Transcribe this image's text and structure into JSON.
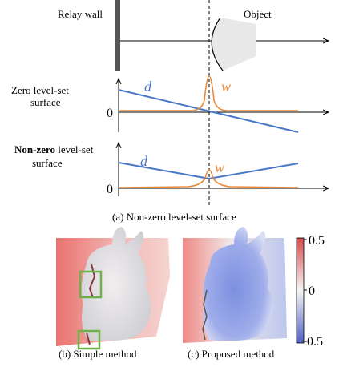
{
  "panel_a": {
    "relay_wall_label": "Relay wall",
    "object_label": "Object",
    "zero_surface_label": [
      "Zero level-set",
      "surface"
    ],
    "nonzero_surface_label_bold": "Non-zero",
    "nonzero_surface_label_rest": " level-set",
    "nonzero_surface_label_line2": "surface",
    "zero_tick": "0",
    "d_label": "d",
    "w_label": "w",
    "caption": "(a) Non-zero level-set surface"
  },
  "panel_b": {
    "caption": "(b) Simple method"
  },
  "panel_c": {
    "caption": "(c) Proposed method"
  },
  "colorbar": {
    "ticks": [
      "0.5",
      "0",
      "−0.5"
    ],
    "max": 0.5,
    "min": -0.5,
    "colors": {
      "positive": "#d94b4b",
      "zero": "#f5f5f5",
      "negative": "#4e5fc7"
    }
  },
  "colors": {
    "d_line": "#4a78c8",
    "w_line": "#e8893a",
    "highlight_box": "#6fb04a"
  }
}
